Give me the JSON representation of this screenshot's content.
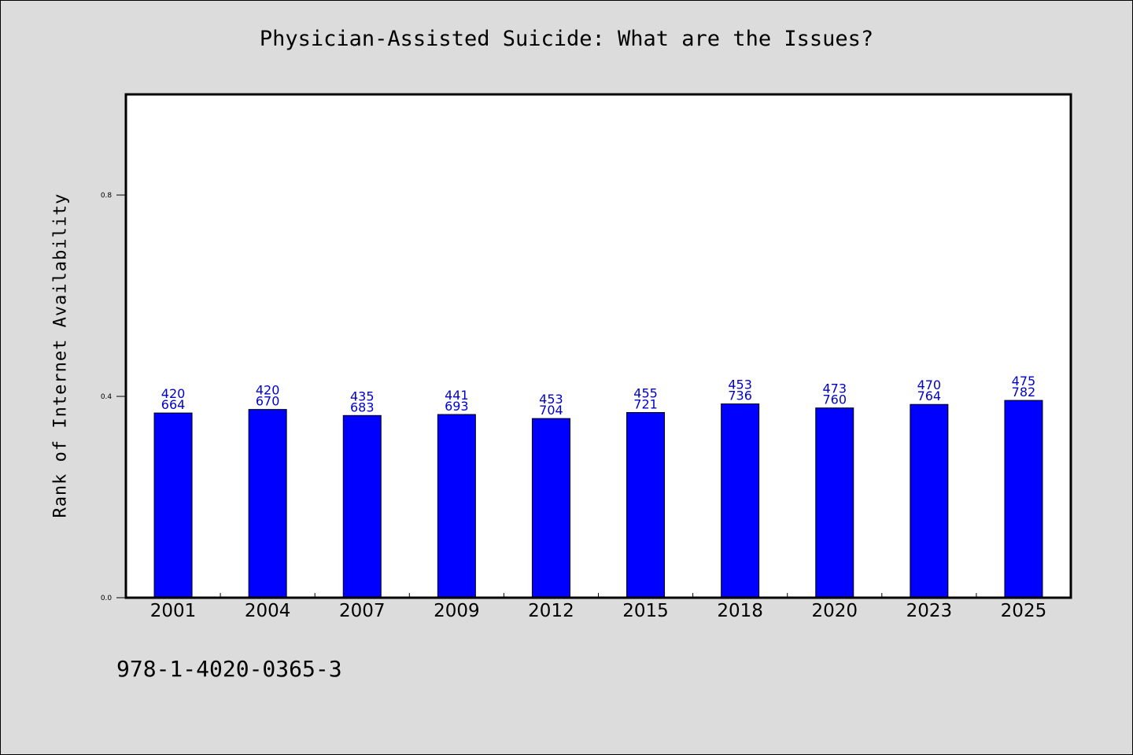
{
  "chart_data": {
    "type": "bar",
    "title": "Physician-Assisted Suicide: What are the Issues?",
    "xlabel": "",
    "ylabel": "Rank of Internet Availability",
    "ylim": [
      0,
      1
    ],
    "yticks": [
      0.0,
      0.4,
      0.8
    ],
    "ytick_labels": [
      "0.0",
      "0.4",
      "0.8"
    ],
    "categories": [
      "2001",
      "2004",
      "2007",
      "2009",
      "2012",
      "2015",
      "2018",
      "2020",
      "2023",
      "2025"
    ],
    "values": [
      0.367,
      0.374,
      0.362,
      0.364,
      0.356,
      0.368,
      0.385,
      0.377,
      0.384,
      0.392
    ],
    "labels_top": [
      "420",
      "420",
      "435",
      "441",
      "453",
      "455",
      "453",
      "473",
      "470",
      "475"
    ],
    "labels_bottom": [
      "664",
      "670",
      "683",
      "693",
      "704",
      "721",
      "736",
      "760",
      "764",
      "782"
    ],
    "bar_color": "#0000ff",
    "label_color": "#0000cc",
    "grid": false,
    "legend": "none"
  },
  "footnote": "978-1-4020-0365-3",
  "colors": {
    "background": "#dcdcdc",
    "plot_background": "#ffffff"
  }
}
